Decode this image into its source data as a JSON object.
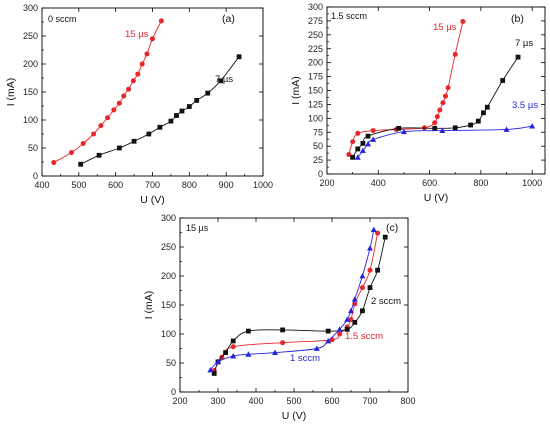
{
  "chart_data": [
    {
      "type": "line",
      "panel_label": "(a)",
      "condition": "0 sccm",
      "xlabel": "U (V)",
      "ylabel": "I (mA)",
      "xlim": [
        400,
        1000
      ],
      "ylim": [
        0,
        300
      ],
      "xticks": [
        "400",
        "500",
        "600",
        "700",
        "800",
        "900",
        "1000"
      ],
      "yticks": [
        "0",
        "50",
        "100",
        "150",
        "200",
        "250",
        "300"
      ],
      "series": [
        {
          "name": "15 µs",
          "color": "#e8262a",
          "marker": "circle",
          "x": [
            432,
            480,
            512,
            540,
            560,
            578,
            595,
            610,
            622,
            635,
            648,
            660,
            672,
            685,
            700,
            724
          ],
          "y": [
            24,
            42,
            58,
            75,
            90,
            104,
            118,
            130,
            143,
            155,
            170,
            182,
            200,
            218,
            245,
            277
          ]
        },
        {
          "name": "7 µs",
          "color": "#111111",
          "marker": "square",
          "x": [
            505,
            555,
            610,
            650,
            690,
            720,
            750,
            765,
            780,
            800,
            820,
            850,
            885,
            935
          ],
          "y": [
            21,
            37,
            50,
            62,
            75,
            87,
            98,
            108,
            116,
            124,
            135,
            148,
            170,
            213
          ]
        }
      ]
    },
    {
      "type": "line",
      "panel_label": "(b)",
      "condition": "1.5 sccm",
      "xlabel": "U (V)",
      "ylabel": "I (mA)",
      "xlim": [
        200,
        1050
      ],
      "ylim": [
        0,
        300
      ],
      "xticks": [
        "200",
        "400",
        "600",
        "800",
        "1000"
      ],
      "yticks": [
        "0",
        "25",
        "50",
        "75",
        "100",
        "125",
        "150",
        "175",
        "200",
        "225",
        "250",
        "275",
        "300"
      ],
      "series": [
        {
          "name": "15 µs",
          "color": "#e8262a",
          "marker": "circle",
          "x": [
            285,
            300,
            320,
            380,
            470,
            580,
            620,
            630,
            640,
            652,
            662,
            672,
            700,
            730
          ],
          "y": [
            35,
            58,
            73,
            78,
            80,
            83,
            92,
            103,
            115,
            128,
            140,
            155,
            215,
            274
          ]
        },
        {
          "name": "7 µs",
          "color": "#111111",
          "marker": "square",
          "x": [
            300,
            320,
            340,
            360,
            480,
            620,
            700,
            760,
            790,
            810,
            825,
            885,
            945
          ],
          "y": [
            30,
            45,
            55,
            68,
            82,
            82,
            83,
            88,
            95,
            110,
            120,
            168,
            210
          ]
        },
        {
          "name": "3.5 µs",
          "color": "#2424e0",
          "marker": "triangle",
          "x": [
            320,
            340,
            360,
            380,
            500,
            650,
            900,
            1000
          ],
          "y": [
            30,
            42,
            54,
            62,
            76,
            78,
            80,
            86
          ]
        }
      ]
    },
    {
      "type": "line",
      "panel_label": "(c)",
      "condition": "15 µs",
      "xlabel": "U (V)",
      "ylabel": "I (mA)",
      "xlim": [
        200,
        800
      ],
      "ylim": [
        0,
        300
      ],
      "xticks": [
        "200",
        "300",
        "400",
        "500",
        "600",
        "700",
        "800"
      ],
      "yticks": [
        "0",
        "50",
        "100",
        "150",
        "200",
        "250",
        "300"
      ],
      "series": [
        {
          "name": "1.5 sccm",
          "color": "#e8262a",
          "marker": "circle",
          "x": [
            290,
            310,
            340,
            470,
            600,
            620,
            640,
            650,
            660,
            680,
            700,
            720
          ],
          "y": [
            37,
            60,
            78,
            85,
            90,
            100,
            112,
            125,
            152,
            180,
            210,
            274
          ]
        },
        {
          "name": "2 sccm",
          "color": "#111111",
          "marker": "square",
          "x": [
            290,
            300,
            320,
            340,
            380,
            470,
            590,
            640,
            660,
            680,
            700,
            720,
            740
          ],
          "y": [
            32,
            52,
            68,
            88,
            105,
            107,
            105,
            108,
            120,
            140,
            180,
            210,
            267
          ]
        },
        {
          "name": "1 sccm",
          "color": "#2424e0",
          "marker": "triangle",
          "x": [
            280,
            300,
            340,
            380,
            450,
            560,
            590,
            620,
            640,
            650,
            660,
            680,
            700,
            710
          ],
          "y": [
            38,
            52,
            62,
            65,
            68,
            75,
            88,
            108,
            125,
            140,
            160,
            200,
            248,
            280
          ]
        }
      ]
    }
  ]
}
